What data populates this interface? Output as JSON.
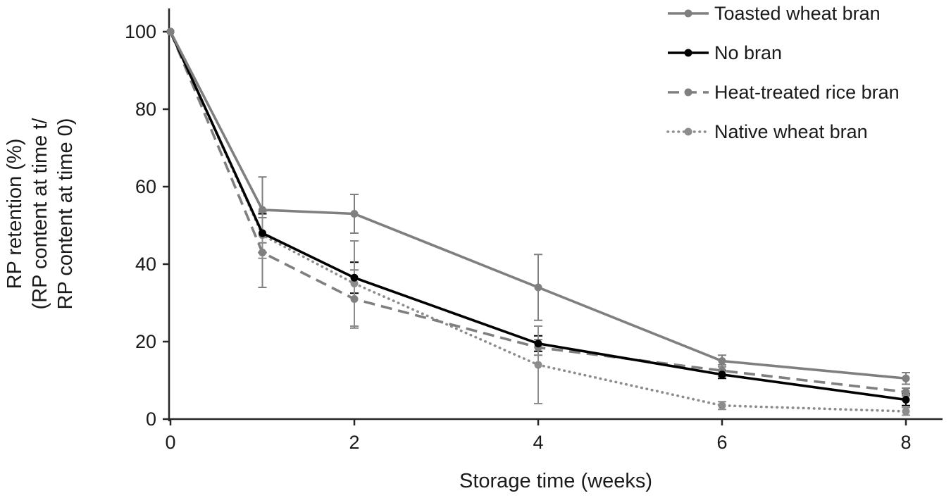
{
  "chart_data": {
    "type": "line",
    "title": "",
    "xlabel": "Storage time (weeks)",
    "ylabel_lines": [
      "RP retention (%)",
      "(RP content at time t/",
      "RP content at time 0)"
    ],
    "x": [
      0,
      1,
      2,
      4,
      6,
      8
    ],
    "xlim": [
      0,
      8.4
    ],
    "ylim": [
      0,
      100
    ],
    "x_ticks": [
      0,
      2,
      4,
      6,
      8
    ],
    "y_ticks": [
      0,
      20,
      40,
      60,
      80,
      100
    ],
    "grid": false,
    "legend_position": "top-right",
    "error_bars": true,
    "series": [
      {
        "name": "Toasted wheat bran",
        "color": "#7f7f7f",
        "line_style": "solid",
        "marker": "circle",
        "values": [
          100,
          54,
          53,
          34,
          15,
          10.5
        ],
        "errors": [
          0,
          8.5,
          5,
          8.5,
          1.5,
          1.5
        ]
      },
      {
        "name": "No bran",
        "color": "#000000",
        "line_style": "solid",
        "marker": "circle",
        "values": [
          100,
          48,
          36.5,
          19.5,
          11.5,
          5
        ],
        "errors": [
          0,
          5,
          4,
          2,
          1,
          1.5
        ]
      },
      {
        "name": "Heat-treated rice bran",
        "color": "#7f7f7f",
        "line_style": "dashed",
        "marker": "circle",
        "values": [
          100,
          43,
          31,
          18.5,
          12.5,
          7
        ],
        "errors": [
          0,
          9,
          7.5,
          2,
          1.5,
          1
        ]
      },
      {
        "name": "Native wheat bran",
        "color": "#8c8c8c",
        "line_style": "dotted",
        "marker": "circle",
        "values": [
          100,
          47.5,
          35,
          14,
          3.5,
          2
        ],
        "errors": [
          0,
          6,
          11,
          10,
          1,
          1
        ]
      }
    ]
  }
}
